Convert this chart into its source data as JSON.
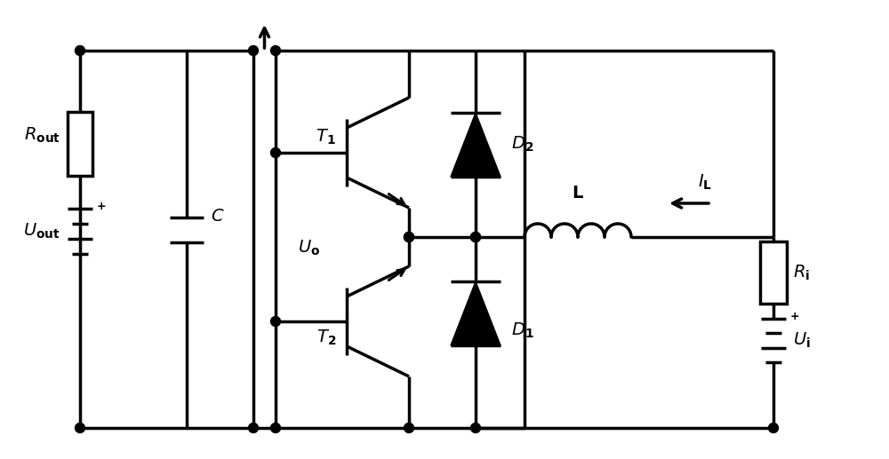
{
  "bg_color": "#ffffff",
  "line_color": "#000000",
  "line_width": 2.5,
  "fig_width": 10.0,
  "fig_height": 5.17,
  "xlim": [
    0,
    10
  ],
  "ylim": [
    0,
    5.17
  ]
}
